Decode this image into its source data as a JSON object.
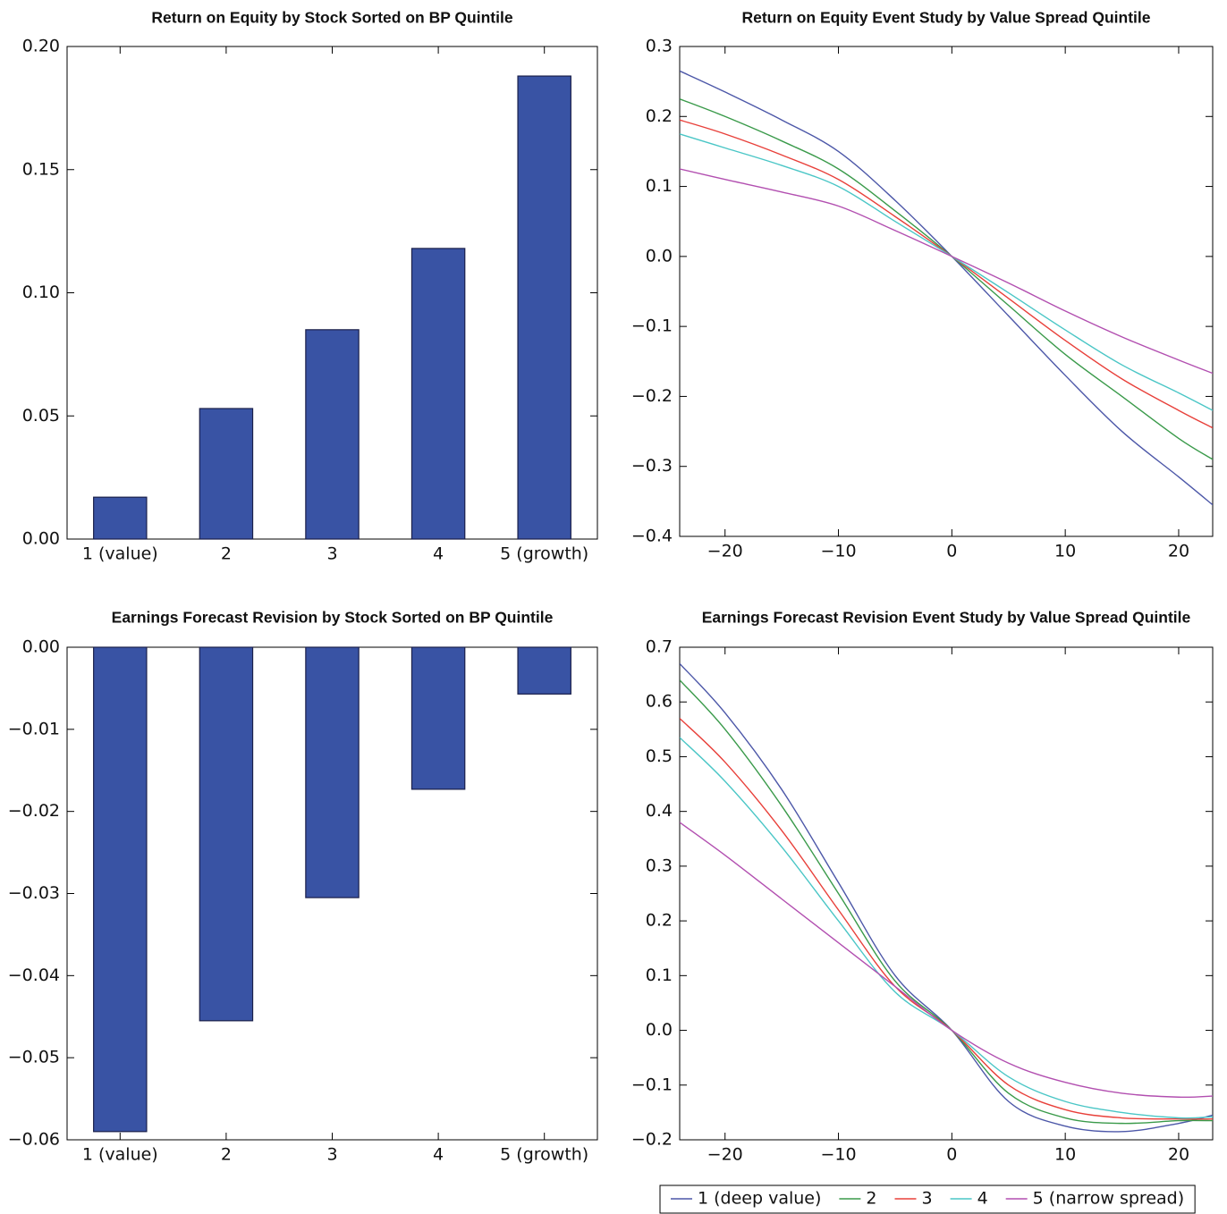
{
  "chart_data": [
    {
      "type": "bar",
      "title": "Return on Equity by Stock Sorted on BP Quintile",
      "categories": [
        "1 (value)",
        "2",
        "3",
        "4",
        "5 (growth)"
      ],
      "values": [
        0.017,
        0.053,
        0.085,
        0.118,
        0.188
      ],
      "color": "#3953a4",
      "ylim": [
        0,
        0.2
      ],
      "yticks": [
        {
          "value": 0,
          "label": "0.00"
        },
        {
          "value": 0.05,
          "label": "0.05"
        },
        {
          "value": 0.1,
          "label": "0.10"
        },
        {
          "value": 0.15,
          "label": "0.15"
        },
        {
          "value": 0.2,
          "label": "0.20"
        }
      ]
    },
    {
      "type": "line",
      "title": "Return on Equity Event Study by Value Spread Quintile",
      "x": [
        -24,
        -20,
        -15,
        -10,
        -5,
        0,
        5,
        10,
        15,
        20,
        23
      ],
      "series": [
        {
          "color": "#4c57a8",
          "values": [
            0.265,
            0.235,
            0.195,
            0.15,
            0.08,
            0,
            -0.085,
            -0.17,
            -0.25,
            -0.315,
            -0.355
          ]
        },
        {
          "color": "#3a9a4a",
          "values": [
            0.225,
            0.2,
            0.165,
            0.125,
            0.065,
            0,
            -0.07,
            -0.14,
            -0.2,
            -0.26,
            -0.29
          ]
        },
        {
          "color": "#e8403a",
          "values": [
            0.195,
            0.175,
            0.145,
            0.11,
            0.057,
            0,
            -0.06,
            -0.12,
            -0.175,
            -0.22,
            -0.245
          ]
        },
        {
          "color": "#4ac6c6",
          "values": [
            0.175,
            0.155,
            0.13,
            0.1,
            0.05,
            0,
            -0.052,
            -0.105,
            -0.155,
            -0.195,
            -0.22
          ]
        },
        {
          "color": "#b24fb0",
          "values": [
            0.125,
            0.11,
            0.092,
            0.072,
            0.037,
            0,
            -0.038,
            -0.078,
            -0.115,
            -0.148,
            -0.167
          ]
        }
      ],
      "xlim": [
        -24,
        23
      ],
      "xticks": [
        {
          "value": -20,
          "label": "−20"
        },
        {
          "value": -10,
          "label": "−10"
        },
        0,
        10,
        20
      ],
      "ylim": [
        -0.4,
        0.3
      ],
      "yticks": [
        {
          "value": -0.4,
          "label": "−0.4"
        },
        {
          "value": -0.3,
          "label": "−0.3"
        },
        {
          "value": -0.2,
          "label": "−0.2"
        },
        {
          "value": -0.1,
          "label": "−0.1"
        },
        {
          "value": 0,
          "label": "0.0"
        },
        0.1,
        0.2,
        0.3
      ]
    },
    {
      "type": "bar",
      "title": "Earnings Forecast Revision by Stock Sorted on BP Quintile",
      "categories": [
        "1 (value)",
        "2",
        "3",
        "4",
        "5 (growth)"
      ],
      "values": [
        -0.059,
        -0.0455,
        -0.0305,
        -0.0173,
        -0.0057
      ],
      "color": "#3953a4",
      "ylim": [
        -0.06,
        0
      ],
      "yticks": [
        {
          "value": -0.06,
          "label": "−0.06"
        },
        {
          "value": -0.05,
          "label": "−0.05"
        },
        {
          "value": -0.04,
          "label": "−0.04"
        },
        {
          "value": -0.03,
          "label": "−0.03"
        },
        {
          "value": -0.02,
          "label": "−0.02"
        },
        {
          "value": -0.01,
          "label": "−0.01"
        },
        {
          "value": 0,
          "label": "0.00"
        }
      ]
    },
    {
      "type": "line",
      "title": "Earnings Forecast Revision Event Study by Value Spread Quintile",
      "x": [
        -24,
        -20,
        -15,
        -10,
        -5,
        0,
        5,
        10,
        15,
        20,
        23
      ],
      "series": [
        {
          "name": "1 (deep value)",
          "color": "#4c57a8",
          "values": [
            0.67,
            0.58,
            0.44,
            0.27,
            0.1,
            0,
            -0.13,
            -0.175,
            -0.185,
            -0.17,
            -0.155
          ]
        },
        {
          "name": "2",
          "color": "#3a9a4a",
          "values": [
            0.64,
            0.55,
            0.41,
            0.25,
            0.09,
            0,
            -0.115,
            -0.16,
            -0.17,
            -0.165,
            -0.165
          ]
        },
        {
          "name": "3",
          "color": "#e8403a",
          "values": [
            0.57,
            0.49,
            0.365,
            0.22,
            0.08,
            0,
            -0.1,
            -0.145,
            -0.16,
            -0.162,
            -0.162
          ]
        },
        {
          "name": "4",
          "color": "#4ac6c6",
          "values": [
            0.535,
            0.455,
            0.335,
            0.2,
            0.07,
            0,
            -0.085,
            -0.13,
            -0.15,
            -0.16,
            -0.158
          ]
        },
        {
          "name": "5 (narrow spread)",
          "color": "#b24fb0",
          "values": [
            0.38,
            0.32,
            0.24,
            0.16,
            0.08,
            0,
            -0.06,
            -0.095,
            -0.115,
            -0.122,
            -0.12
          ]
        }
      ],
      "xlim": [
        -24,
        23
      ],
      "xticks": [
        {
          "value": -20,
          "label": "−20"
        },
        {
          "value": -10,
          "label": "−10"
        },
        0,
        10,
        20
      ],
      "ylim": [
        -0.2,
        0.7
      ],
      "yticks": [
        {
          "value": -0.2,
          "label": "−0.2"
        },
        {
          "value": -0.1,
          "label": "−0.1"
        },
        {
          "value": 0,
          "label": "0.0"
        },
        0.1,
        0.2,
        0.3,
        0.4,
        0.5,
        0.6,
        0.7
      ],
      "legend": "below"
    }
  ]
}
